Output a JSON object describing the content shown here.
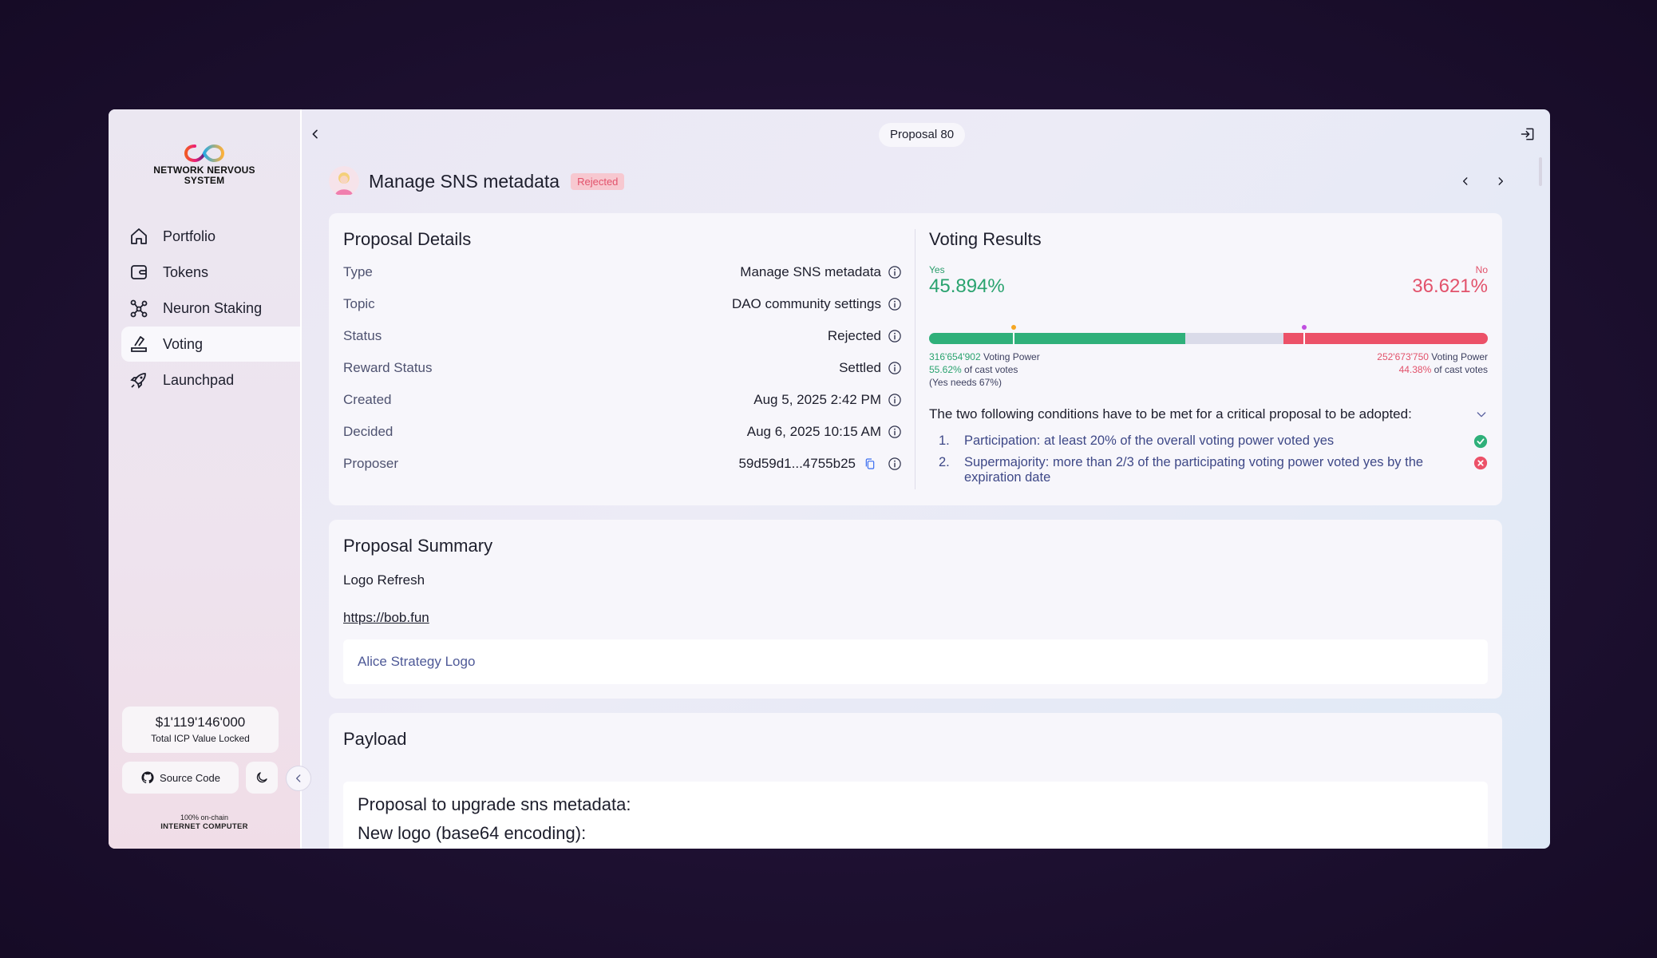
{
  "sidebar": {
    "logo_text": "NETWORK NERVOUS SYSTEM",
    "items": [
      {
        "label": "Portfolio",
        "icon": "home-icon"
      },
      {
        "label": "Tokens",
        "icon": "wallet-icon"
      },
      {
        "label": "Neuron Staking",
        "icon": "neuron-icon"
      },
      {
        "label": "Voting",
        "icon": "voting-icon",
        "active": true
      },
      {
        "label": "Launchpad",
        "icon": "rocket-icon"
      }
    ],
    "tvl_value": "$1'119'146'000",
    "tvl_label": "Total ICP Value Locked",
    "source_code_label": "Source Code",
    "footer_top": "100% on-chain",
    "footer_bottom": "INTERNET COMPUTER"
  },
  "header": {
    "pill": "Proposal 80"
  },
  "proposal": {
    "title": "Manage SNS metadata",
    "status_badge": "Rejected"
  },
  "details": {
    "heading": "Proposal Details",
    "rows": [
      {
        "label": "Type",
        "value": "Manage SNS metadata"
      },
      {
        "label": "Topic",
        "value": "DAO community settings"
      },
      {
        "label": "Status",
        "value": "Rejected"
      },
      {
        "label": "Reward Status",
        "value": "Settled"
      },
      {
        "label": "Created",
        "value": "Aug 5, 2025 2:42 PM"
      },
      {
        "label": "Decided",
        "value": "Aug 6, 2025 10:15 AM"
      },
      {
        "label": "Proposer",
        "value": "59d59d1...4755b25"
      }
    ]
  },
  "voting": {
    "heading": "Voting Results",
    "yes_label": "Yes",
    "no_label": "No",
    "yes_percent": "45.894%",
    "no_percent": "36.621%",
    "yes_fraction": 0.45894,
    "no_fraction": 0.36621,
    "yes_power": "316'654'902",
    "no_power": "252'673'750",
    "voting_power_label": "Voting Power",
    "yes_cast": "55.62%",
    "no_cast": "44.38%",
    "cast_label": "of cast votes",
    "yes_needs": "(Yes needs 67%)",
    "colors": {
      "yes": "#2fb07a",
      "no": "#ec5168"
    },
    "conditions_title": "The two following conditions have to be met for a critical proposal to be adopted:",
    "conditions": [
      {
        "num": "1.",
        "text": "Participation: at least 20% of the overall voting power voted yes",
        "met": true
      },
      {
        "num": "2.",
        "text": "Supermajority: more than 2/3 of the participating voting power voted yes by the expiration date",
        "met": false
      }
    ]
  },
  "summary": {
    "heading": "Proposal Summary",
    "text": "Logo Refresh",
    "link": "https://bob.fun",
    "box_text": "Alice Strategy Logo"
  },
  "payload": {
    "heading": "Payload",
    "line1": "Proposal to upgrade sns metadata:",
    "line2": "New logo (base64 encoding):"
  }
}
